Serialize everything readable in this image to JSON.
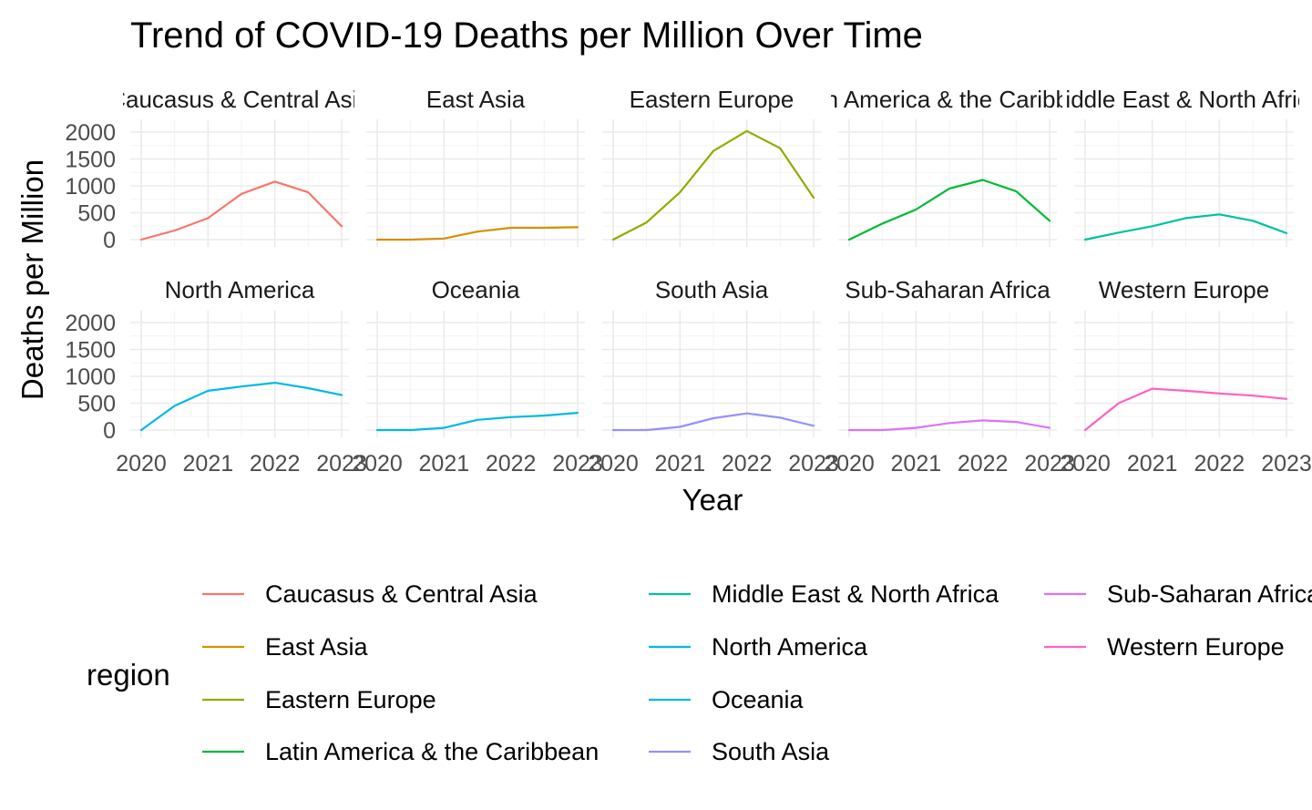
{
  "chart_data": {
    "type": "line",
    "title": "Trend of COVID-19 Deaths per Million Over Time",
    "xlabel": "Year",
    "ylabel": "Deaths per Million",
    "xlim": [
      2020,
      2023
    ],
    "ylim": [
      0,
      2000
    ],
    "x_ticks": [
      "2020",
      "2021",
      "2022",
      "2023"
    ],
    "y_ticks": [
      "0",
      "500",
      "1000",
      "1500",
      "2000"
    ],
    "grid": true,
    "legend_title": "region",
    "legend_position": "bottom",
    "x": [
      2020.0,
      2020.5,
      2021.0,
      2021.5,
      2022.0,
      2022.5,
      2023.0
    ],
    "series": [
      {
        "name": "Caucasus & Central Asia",
        "color": "#F8766D",
        "values": [
          0,
          170,
          400,
          850,
          1080,
          880,
          250
        ]
      },
      {
        "name": "East Asia",
        "color": "#D39200",
        "values": [
          0,
          0,
          20,
          150,
          220,
          220,
          230
        ]
      },
      {
        "name": "Eastern Europe",
        "color": "#93AA00",
        "values": [
          0,
          320,
          880,
          1650,
          2020,
          1700,
          780
        ]
      },
      {
        "name": "Latin America & the Caribbean",
        "color": "#00BA38",
        "values": [
          0,
          300,
          560,
          950,
          1110,
          900,
          350
        ]
      },
      {
        "name": "Middle East & North Africa",
        "color": "#00C19F",
        "values": [
          0,
          130,
          250,
          400,
          470,
          350,
          120
        ]
      },
      {
        "name": "North America",
        "color": "#00B9E3",
        "values": [
          0,
          450,
          730,
          810,
          880,
          780,
          650
        ]
      },
      {
        "name": "Oceania",
        "color": "#00B9E3",
        "values": [
          0,
          0,
          40,
          190,
          240,
          270,
          320
        ]
      },
      {
        "name": "South Asia",
        "color": "#9590FF",
        "values": [
          0,
          0,
          60,
          220,
          310,
          230,
          80
        ]
      },
      {
        "name": "Sub-Saharan Africa",
        "color": "#DB72FB",
        "values": [
          0,
          0,
          40,
          130,
          180,
          150,
          40
        ]
      },
      {
        "name": "Western Europe",
        "color": "#FF61C3",
        "values": [
          0,
          500,
          770,
          730,
          680,
          640,
          580
        ]
      }
    ],
    "panels": [
      {
        "strip": "Caucasus & Central Asia",
        "series": 0
      },
      {
        "strip": "East Asia",
        "series": 1
      },
      {
        "strip": "Eastern Europe",
        "series": 2
      },
      {
        "strip": "Latin America & the Caribbean",
        "series": 3
      },
      {
        "strip": "Middle East & North Africa",
        "series": 4
      },
      {
        "strip": "North America",
        "series": 5
      },
      {
        "strip": "Oceania",
        "series": 6
      },
      {
        "strip": "South Asia",
        "series": 7
      },
      {
        "strip": "Sub-Saharan Africa",
        "series": 8
      },
      {
        "strip": "Western Europe",
        "series": 9
      }
    ]
  }
}
